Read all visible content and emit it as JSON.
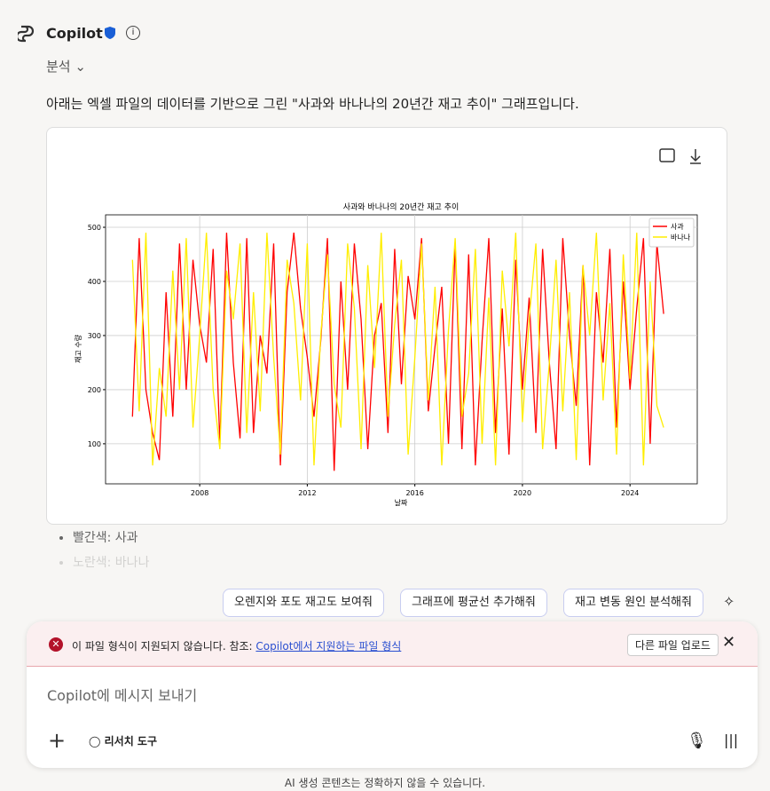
{
  "header": {
    "name": "Copilot",
    "mode": "분석"
  },
  "message": "아래는 엑셀 파일의 데이터를 기반으로 그린 \"사과와 바나나의 20년간 재고 추이\" 그래프입니다.",
  "chart_data": {
    "type": "line",
    "title": "사과와 바나나의 20년간 재고 추이",
    "x_label": "날짜",
    "y_label": "재고 수량",
    "x": [
      2005.5,
      2005.75,
      2006,
      2006.25,
      2006.5,
      2006.75,
      2007,
      2007.25,
      2007.5,
      2007.75,
      2008,
      2008.25,
      2008.5,
      2008.75,
      2009,
      2009.25,
      2009.5,
      2009.75,
      2010,
      2010.25,
      2010.5,
      2010.75,
      2011,
      2011.25,
      2011.5,
      2011.75,
      2012,
      2012.25,
      2012.5,
      2012.75,
      2013,
      2013.25,
      2013.5,
      2013.75,
      2014,
      2014.25,
      2014.5,
      2014.75,
      2015,
      2015.25,
      2015.5,
      2015.75,
      2016,
      2016.25,
      2016.5,
      2016.75,
      2017,
      2017.25,
      2017.5,
      2017.75,
      2018,
      2018.25,
      2018.5,
      2018.75,
      2019,
      2019.25,
      2019.5,
      2019.75,
      2020,
      2020.25,
      2020.5,
      2020.75,
      2021,
      2021.25,
      2021.5,
      2021.75,
      2022,
      2022.25,
      2022.5,
      2022.75,
      2023,
      2023.25,
      2023.5,
      2023.75,
      2024,
      2024.25,
      2024.5,
      2024.75,
      2025,
      2025.25
    ],
    "series": [
      {
        "name": "사과",
        "color": "#ff0000",
        "values": [
          150,
          480,
          200,
          120,
          70,
          380,
          150,
          470,
          200,
          440,
          320,
          250,
          460,
          100,
          490,
          250,
          110,
          480,
          120,
          300,
          230,
          470,
          60,
          380,
          490,
          350,
          260,
          150,
          290,
          480,
          50,
          400,
          200,
          470,
          330,
          90,
          300,
          360,
          120,
          460,
          210,
          410,
          330,
          480,
          160,
          280,
          390,
          100,
          470,
          90,
          450,
          60,
          290,
          480,
          120,
          350,
          80,
          440,
          200,
          370,
          120,
          460,
          250,
          90,
          480,
          300,
          170,
          430,
          60,
          380,
          250,
          460,
          130,
          400,
          200,
          350,
          480,
          100,
          470,
          340
        ]
      },
      {
        "name": "바나나",
        "color": "#ffee00",
        "values": [
          440,
          160,
          490,
          60,
          240,
          150,
          420,
          200,
          480,
          130,
          300,
          490,
          200,
          90,
          420,
          330,
          470,
          120,
          380,
          160,
          490,
          260,
          80,
          440,
          360,
          180,
          470,
          60,
          300,
          450,
          210,
          130,
          470,
          350,
          90,
          430,
          240,
          490,
          150,
          320,
          440,
          80,
          260,
          470,
          180,
          390,
          60,
          310,
          480,
          150,
          230,
          460,
          100,
          370,
          60,
          420,
          280,
          490,
          140,
          330,
          470,
          90,
          250,
          440,
          160,
          380,
          70,
          430,
          300,
          490,
          180,
          360,
          80,
          450,
          220,
          490,
          60,
          400,
          170,
          130
        ]
      }
    ],
    "xlim": [
      2004.5,
      2026.5
    ],
    "xticks": [
      2008,
      2012,
      2016,
      2020,
      2024
    ],
    "ylim": [
      26,
      523
    ],
    "yticks": [
      100,
      200,
      300,
      400,
      500
    ],
    "grid": true,
    "legend": "upper right"
  },
  "bullets": [
    "빨간색: 사과",
    "노란색: 바나나"
  ],
  "suggestions": [
    "오렌지와 포도 재고도 보여줘",
    "그래프에 평균선 추가해줘",
    "재고 변동 원인 분석해줘"
  ],
  "error": {
    "text": "이 파일 형식이 지원되지 않습니다. 참조:",
    "link": "Copilot에서 지원하는 파일 형식",
    "button": "다른 파일 업로드"
  },
  "composer": {
    "placeholder": "Copilot에 메시지 보내기",
    "tool": "리서치 도구"
  },
  "footer": "AI 생성 콘텐츠는 정확하지 않을 수 있습니다."
}
